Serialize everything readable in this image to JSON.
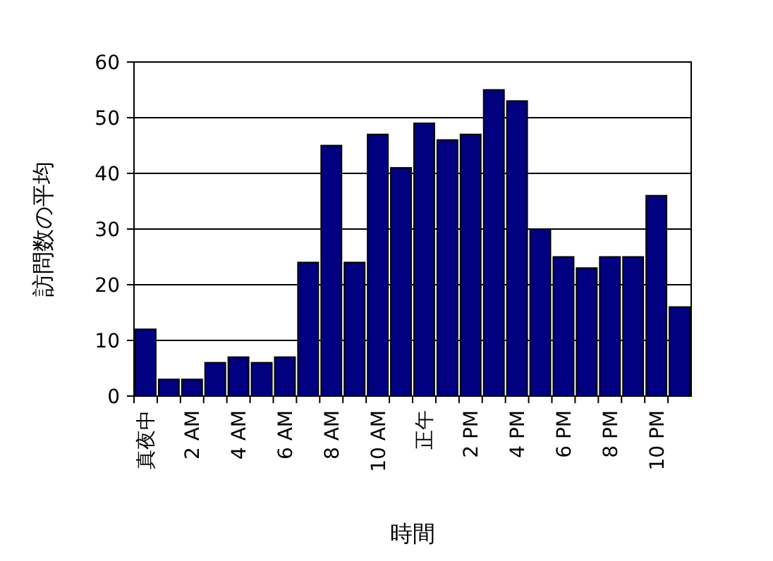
{
  "chart_data": {
    "type": "bar",
    "xlabel": "時間",
    "ylabel": "訪問数の平均",
    "categories": [
      "真夜中",
      null,
      "2 AM",
      null,
      "4 AM",
      null,
      "6 AM",
      null,
      "8 AM",
      null,
      "10 AM",
      null,
      "正午",
      null,
      "2 PM",
      null,
      "4 PM",
      null,
      "6 PM",
      null,
      "8 PM",
      null,
      "10 PM",
      null
    ],
    "values": [
      12,
      3,
      3,
      6,
      7,
      6,
      7,
      24,
      45,
      24,
      47,
      41,
      49,
      46,
      47,
      55,
      53,
      30,
      25,
      23,
      25,
      25,
      36,
      16
    ],
    "color": "#000080",
    "ylim": [
      0,
      60
    ],
    "yticks": [
      0,
      10,
      20,
      30,
      40,
      50,
      60
    ],
    "grid": "y"
  }
}
